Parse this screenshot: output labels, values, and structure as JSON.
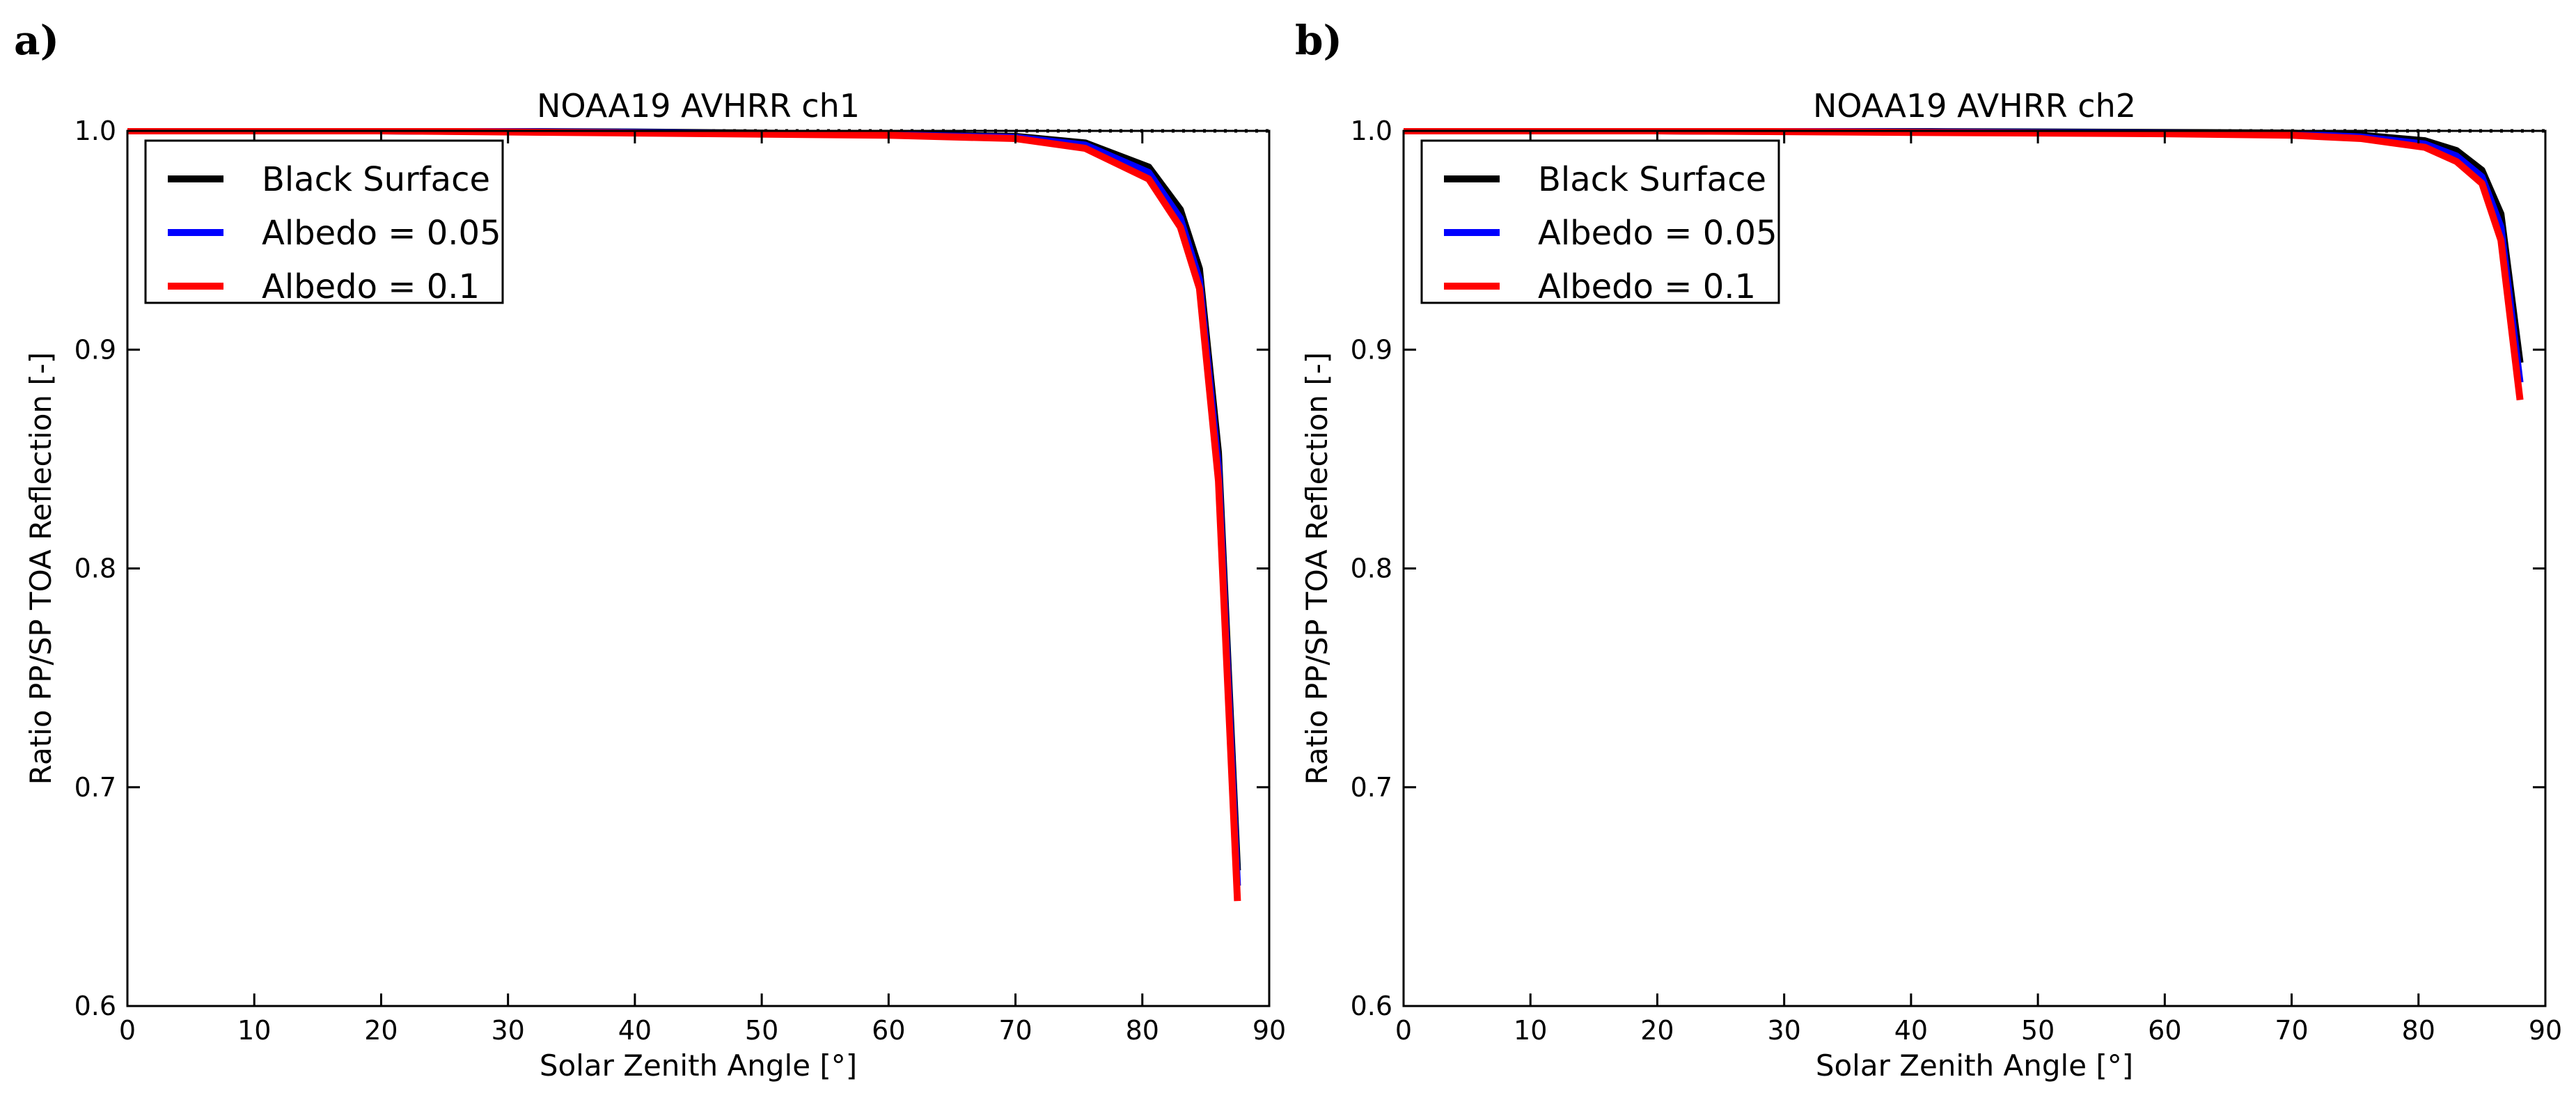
{
  "figure": {
    "panel_labels": [
      "a)",
      "b)"
    ]
  },
  "chart_data": [
    {
      "type": "line",
      "panel_label": "a)",
      "title": "NOAA19 AVHRR ch1",
      "xlabel": "Solar Zenith Angle [°]",
      "ylabel": "Ratio PP/SP TOA Reflection [-]",
      "xlim": [
        0,
        90
      ],
      "ylim": [
        0.6,
        1.0
      ],
      "xticks": [
        0,
        10,
        20,
        30,
        40,
        50,
        60,
        70,
        80,
        90
      ],
      "yticks": [
        0.6,
        0.7,
        0.8,
        0.9,
        1.0
      ],
      "xtick_labels": [
        "0",
        "10",
        "20",
        "30",
        "40",
        "50",
        "60",
        "70",
        "80",
        "90"
      ],
      "ytick_labels": [
        "0.6",
        "0.7",
        "0.8",
        "0.9",
        "1.0"
      ],
      "reference_line": {
        "y": 1.0,
        "style": "dotted",
        "color": "#000000"
      },
      "legend_position": "top-left",
      "series": [
        {
          "name": "Black Surface",
          "color": "#000000",
          "x": [
            0,
            20,
            40,
            60,
            70,
            75.5,
            80.5,
            83,
            84.5,
            86,
            87.5
          ],
          "y": [
            1.0,
            1.0,
            0.9995,
            0.9985,
            0.9975,
            0.9945,
            0.9835,
            0.964,
            0.937,
            0.853,
            0.662
          ]
        },
        {
          "name": "Albedo = 0.05",
          "color": "#0000ff",
          "x": [
            0,
            20,
            40,
            60,
            70,
            75.5,
            80.5,
            83,
            84.5,
            86,
            87.5
          ],
          "y": [
            1.0,
            1.0,
            0.9993,
            0.9982,
            0.997,
            0.9935,
            0.981,
            0.96,
            0.932,
            0.846,
            0.655
          ]
        },
        {
          "name": "Albedo = 0.1",
          "color": "#ff0000",
          "x": [
            0,
            20,
            40,
            60,
            70,
            75.5,
            80.5,
            83,
            84.5,
            86,
            87.5
          ],
          "y": [
            1.0,
            1.0,
            0.999,
            0.998,
            0.9965,
            0.992,
            0.978,
            0.956,
            0.928,
            0.84,
            0.648
          ]
        }
      ]
    },
    {
      "type": "line",
      "panel_label": "b)",
      "title": "NOAA19 AVHRR ch2",
      "xlabel": "Solar Zenith Angle [°]",
      "ylabel": "Ratio PP/SP TOA Reflection [-]",
      "xlim": [
        0,
        90
      ],
      "ylim": [
        0.6,
        1.0
      ],
      "xticks": [
        0,
        10,
        20,
        30,
        40,
        50,
        60,
        70,
        80,
        90
      ],
      "yticks": [
        0.6,
        0.7,
        0.8,
        0.9,
        1.0
      ],
      "xtick_labels": [
        "0",
        "10",
        "20",
        "30",
        "40",
        "50",
        "60",
        "70",
        "80",
        "90"
      ],
      "ytick_labels": [
        "0.6",
        "0.7",
        "0.8",
        "0.9",
        "1.0"
      ],
      "reference_line": {
        "y": 1.0,
        "style": "dotted",
        "color": "#000000"
      },
      "legend_position": "top-left",
      "series": [
        {
          "name": "Black Surface",
          "color": "#000000",
          "x": [
            0,
            20,
            40,
            60,
            70,
            75.5,
            80.5,
            83,
            85,
            86.5,
            88
          ],
          "y": [
            1.0,
            1.0,
            0.9997,
            0.9993,
            0.999,
            0.998,
            0.9955,
            0.991,
            0.982,
            0.962,
            0.894
          ]
        },
        {
          "name": "Albedo = 0.05",
          "color": "#0000ff",
          "x": [
            0,
            20,
            40,
            60,
            70,
            75.5,
            80.5,
            83,
            85,
            86.5,
            88
          ],
          "y": [
            1.0,
            1.0,
            0.9995,
            0.999,
            0.9985,
            0.9972,
            0.994,
            0.9885,
            0.979,
            0.956,
            0.885
          ]
        },
        {
          "name": "Albedo = 0.1",
          "color": "#ff0000",
          "x": [
            0,
            20,
            40,
            60,
            70,
            75.5,
            80.5,
            83,
            85,
            86.5,
            88
          ],
          "y": [
            1.0,
            1.0,
            0.9993,
            0.9987,
            0.998,
            0.9965,
            0.9925,
            0.986,
            0.976,
            0.95,
            0.877
          ]
        }
      ]
    }
  ]
}
